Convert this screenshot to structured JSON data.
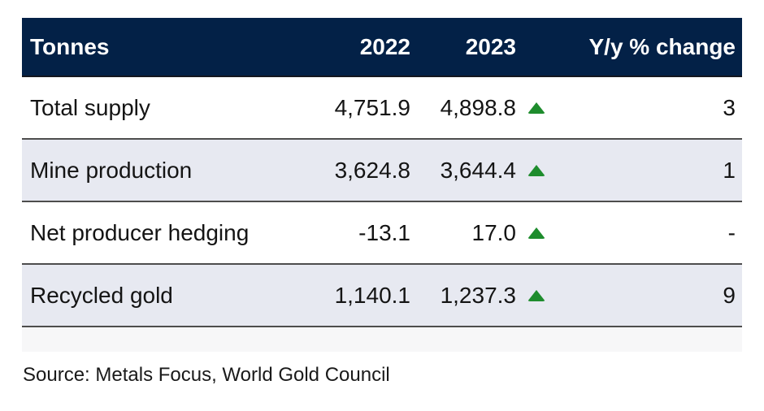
{
  "table": {
    "columns": [
      "Tonnes",
      "2022",
      "2023",
      "Y/y % change"
    ],
    "rows": [
      {
        "label": "Total supply",
        "y2022": "4,751.9",
        "y2023": "4,898.8",
        "trend": "up",
        "change": "3"
      },
      {
        "label": "Mine production",
        "y2022": "3,624.8",
        "y2023": "3,644.4",
        "trend": "up",
        "change": "1"
      },
      {
        "label": "Net producer hedging",
        "y2022": "-13.1",
        "y2023": "17.0",
        "trend": "up",
        "change": "-"
      },
      {
        "label": "Recycled gold",
        "y2022": "1,140.1",
        "y2023": "1,237.3",
        "trend": "up",
        "change": "9"
      }
    ]
  },
  "source": "Source: Metals Focus, World Gold Council",
  "colors": {
    "header_bg": "#032147",
    "stripe_bg": "#e7e9f1",
    "arrow_green": "#1e8c2d"
  }
}
